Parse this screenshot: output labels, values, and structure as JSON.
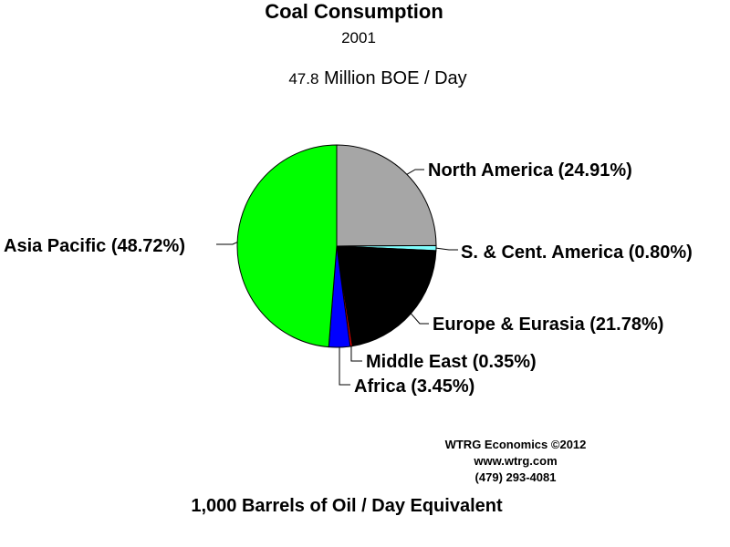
{
  "chart_data": {
    "type": "pie",
    "title": "Coal Consumption",
    "subtitle": "2001",
    "total": {
      "value": "47.8",
      "unit": "Million BOE / Day"
    },
    "slices": [
      {
        "label": "North America (24.91%)",
        "value": 24.91,
        "color": "#a6a6a6"
      },
      {
        "label": "S. & Cent. America (0.80%)",
        "value": 0.8,
        "color": "#80ffff"
      },
      {
        "label": "Europe & Eurasia (21.78%)",
        "value": 21.78,
        "color": "#000000"
      },
      {
        "label": "Middle East (0.35%)",
        "value": 0.35,
        "color": "#ff0000"
      },
      {
        "label": "Africa (3.45%)",
        "value": 3.45,
        "color": "#0000ff"
      },
      {
        "label": "Asia Pacific (48.72%)",
        "value": 48.72,
        "color": "#00ff00"
      }
    ],
    "start": "12 o'clock",
    "direction": "clockwise",
    "footer": "1,000 Barrels of Oil / Day Equivalent"
  },
  "credit": {
    "line1": "WTRG Economics  ©2012",
    "line2": "www.wtrg.com",
    "line3": "(479) 293-4081"
  }
}
